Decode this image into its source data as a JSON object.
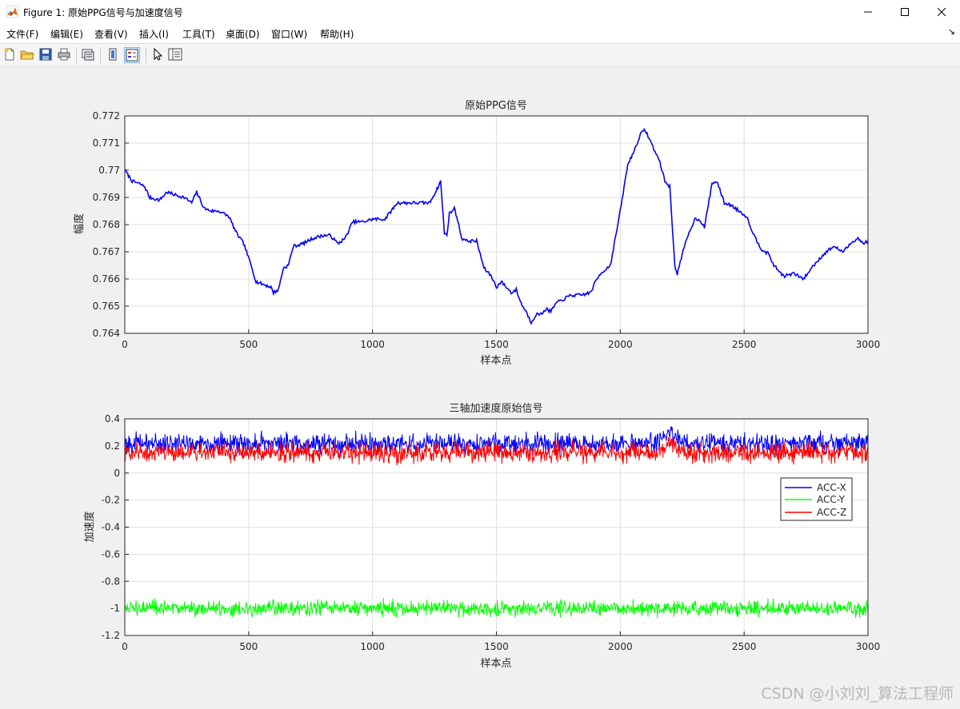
{
  "window": {
    "title": "Figure 1: 原始PPG信号与加速度信号",
    "minimize_icon": "minimize-icon",
    "maximize_icon": "maximize-icon",
    "close_icon": "close-icon"
  },
  "menu": {
    "items": [
      "文件(F)",
      "编辑(E)",
      "查看(V)",
      "插入(I)",
      "工具(T)",
      "桌面(D)",
      "窗口(W)",
      "帮助(H)"
    ],
    "corner_glyph": "↘"
  },
  "toolbar": {
    "icons": [
      "new-figure-icon",
      "open-icon",
      "save-icon",
      "print-icon",
      "link-icon",
      "colorbar-icon",
      "legend-icon",
      "pointer-icon",
      "property-inspector-icon"
    ]
  },
  "watermark": "CSDN @小刘刘_算法工程师",
  "colors": {
    "ppg": "#0000ff",
    "acc_x": "#0000ff",
    "acc_y": "#00ff00",
    "acc_z": "#ff0000"
  },
  "chart_data": [
    {
      "type": "line",
      "title": "原始PPG信号",
      "xlabel": "样本点",
      "ylabel": "幅度",
      "xlim": [
        0,
        3000
      ],
      "ylim": [
        0.764,
        0.772
      ],
      "xticks": [
        0,
        500,
        1000,
        1500,
        2000,
        2500,
        3000
      ],
      "yticks": [
        "0.764",
        "0.765",
        "0.766",
        "0.767",
        "0.768",
        "0.769",
        "0.77",
        "0.771",
        "0.772"
      ],
      "grid": true,
      "series": [
        {
          "color": "#0000ff",
          "points": [
            [
              0,
              0.77
            ],
            [
              30,
              0.7696
            ],
            [
              60,
              0.7695
            ],
            [
              80,
              0.7694
            ],
            [
              100,
              0.769
            ],
            [
              140,
              0.7689
            ],
            [
              170,
              0.7692
            ],
            [
              200,
              0.7691
            ],
            [
              240,
              0.769
            ],
            [
              270,
              0.7688
            ],
            [
              290,
              0.7692
            ],
            [
              320,
              0.7686
            ],
            [
              350,
              0.7685
            ],
            [
              380,
              0.7685
            ],
            [
              420,
              0.7683
            ],
            [
              450,
              0.7677
            ],
            [
              480,
              0.7673
            ],
            [
              510,
              0.7665
            ],
            [
              530,
              0.7659
            ],
            [
              560,
              0.7658
            ],
            [
              590,
              0.7657
            ],
            [
              600,
              0.7655
            ],
            [
              620,
              0.7656
            ],
            [
              640,
              0.7664
            ],
            [
              660,
              0.7665
            ],
            [
              680,
              0.7672
            ],
            [
              720,
              0.7673
            ],
            [
              760,
              0.7675
            ],
            [
              800,
              0.7676
            ],
            [
              830,
              0.7676
            ],
            [
              860,
              0.7673
            ],
            [
              890,
              0.7675
            ],
            [
              920,
              0.7681
            ],
            [
              960,
              0.7681
            ],
            [
              1000,
              0.7682
            ],
            [
              1050,
              0.7682
            ],
            [
              1100,
              0.7688
            ],
            [
              1150,
              0.7688
            ],
            [
              1200,
              0.7688
            ],
            [
              1230,
              0.7688
            ],
            [
              1260,
              0.7693
            ],
            [
              1275,
              0.7696
            ],
            [
              1290,
              0.7677
            ],
            [
              1300,
              0.7676
            ],
            [
              1310,
              0.7684
            ],
            [
              1330,
              0.7686
            ],
            [
              1340,
              0.7683
            ],
            [
              1360,
              0.7675
            ],
            [
              1380,
              0.7674
            ],
            [
              1420,
              0.7674
            ],
            [
              1450,
              0.7664
            ],
            [
              1480,
              0.7661
            ],
            [
              1500,
              0.7657
            ],
            [
              1520,
              0.7659
            ],
            [
              1540,
              0.7657
            ],
            [
              1560,
              0.7655
            ],
            [
              1580,
              0.7656
            ],
            [
              1600,
              0.7651
            ],
            [
              1620,
              0.7648
            ],
            [
              1640,
              0.7644
            ],
            [
              1660,
              0.7647
            ],
            [
              1680,
              0.7647
            ],
            [
              1700,
              0.7649
            ],
            [
              1720,
              0.7648
            ],
            [
              1740,
              0.7651
            ],
            [
              1760,
              0.7652
            ],
            [
              1800,
              0.7654
            ],
            [
              1840,
              0.7654
            ],
            [
              1880,
              0.7655
            ],
            [
              1900,
              0.7659
            ],
            [
              1920,
              0.7662
            ],
            [
              1960,
              0.7665
            ],
            [
              1980,
              0.7675
            ],
            [
              2000,
              0.7685
            ],
            [
              2030,
              0.7702
            ],
            [
              2060,
              0.7708
            ],
            [
              2080,
              0.7713
            ],
            [
              2100,
              0.7715
            ],
            [
              2120,
              0.7711
            ],
            [
              2140,
              0.7707
            ],
            [
              2160,
              0.7703
            ],
            [
              2180,
              0.7696
            ],
            [
              2200,
              0.7694
            ],
            [
              2220,
              0.7665
            ],
            [
              2230,
              0.7662
            ],
            [
              2250,
              0.7669
            ],
            [
              2270,
              0.7675
            ],
            [
              2300,
              0.7682
            ],
            [
              2320,
              0.7682
            ],
            [
              2340,
              0.7679
            ],
            [
              2370,
              0.7695
            ],
            [
              2390,
              0.7696
            ],
            [
              2420,
              0.7688
            ],
            [
              2450,
              0.7687
            ],
            [
              2480,
              0.7685
            ],
            [
              2510,
              0.7683
            ],
            [
              2540,
              0.7676
            ],
            [
              2570,
              0.7671
            ],
            [
              2600,
              0.7669
            ],
            [
              2620,
              0.7665
            ],
            [
              2660,
              0.7661
            ],
            [
              2700,
              0.7662
            ],
            [
              2740,
              0.766
            ],
            [
              2780,
              0.7665
            ],
            [
              2820,
              0.7669
            ],
            [
              2860,
              0.7672
            ],
            [
              2900,
              0.767
            ],
            [
              2940,
              0.7674
            ],
            [
              2960,
              0.7675
            ],
            [
              2980,
              0.7673
            ],
            [
              3000,
              0.7674
            ]
          ]
        }
      ]
    },
    {
      "type": "line",
      "title": "三轴加速度原始信号",
      "xlabel": "样本点",
      "ylabel": "加速度",
      "xlim": [
        0,
        3000
      ],
      "ylim": [
        -1.2,
        0.4
      ],
      "xticks": [
        0,
        500,
        1000,
        1500,
        2000,
        2500,
        3000
      ],
      "yticks": [
        "-1.2",
        "-1",
        "-0.8",
        "-0.6",
        "-0.4",
        "-0.2",
        "0",
        "0.2",
        "0.4"
      ],
      "grid": true,
      "legend_position": "right",
      "n_samples": 3000,
      "series": [
        {
          "name": "ACC-X",
          "color": "#0000ff",
          "mean": 0.22,
          "noise": 0.045,
          "extra_peak": {
            "center": 2200,
            "height": 0.08,
            "width": 30
          }
        },
        {
          "name": "ACC-Y",
          "color": "#00ff00",
          "mean": -1.0,
          "noise": 0.035,
          "extra_peak": null
        },
        {
          "name": "ACC-Z",
          "color": "#ff0000",
          "mean": 0.15,
          "noise": 0.045,
          "extra_peak": {
            "center": 2200,
            "height": 0.06,
            "width": 30
          }
        }
      ]
    }
  ]
}
